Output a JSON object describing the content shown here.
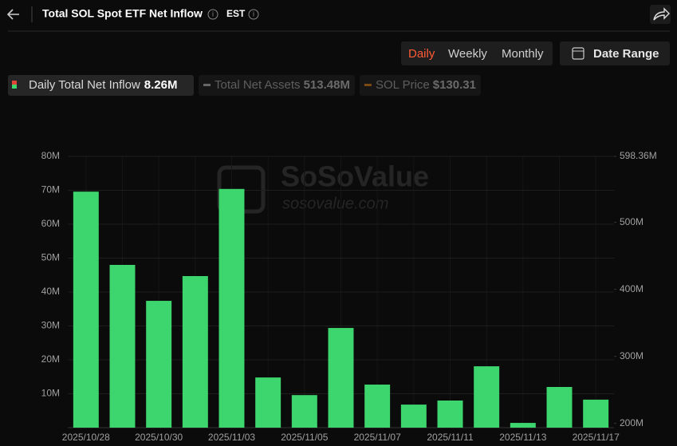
{
  "header": {
    "title": "Total SOL Spot ETF Net Inflow",
    "timezone": "EST"
  },
  "tabs": [
    "Daily",
    "Weekly",
    "Monthly"
  ],
  "active_tab": 0,
  "date_range": "Date Range",
  "watermark": {
    "brand": "SoSoValue",
    "site": "sosovalue.com"
  },
  "chart_data": {
    "type": "bar",
    "categories": [
      "2025/10/28",
      null,
      "2025/10/30",
      null,
      "2025/11/03",
      null,
      "2025/11/05",
      null,
      "2025/11/07",
      null,
      "2025/11/11",
      null,
      "2025/11/13",
      null,
      "2025/11/17"
    ],
    "series": [
      {
        "name": "Daily Total Net Inflow",
        "color": "#3dd56d",
        "latest_label": "8.26M",
        "values": [
          69.6,
          48.0,
          37.4,
          44.7,
          70.4,
          14.8,
          9.6,
          29.4,
          12.7,
          6.8,
          8.0,
          18.1,
          1.4,
          12.0,
          8.26
        ]
      }
    ],
    "other_metrics": [
      {
        "name": "Total Net Assets",
        "value_label": "513.48M",
        "color": "#666666"
      },
      {
        "name": "SOL Price",
        "value_label": "$130.31",
        "color": "#7a4a12"
      }
    ],
    "ylim": [
      0,
      80
    ],
    "yticks": [
      {
        "value": 10,
        "label": "10M"
      },
      {
        "value": 20,
        "label": "20M"
      },
      {
        "value": 30,
        "label": "30M"
      },
      {
        "value": 40,
        "label": "40M"
      },
      {
        "value": 50,
        "label": "50M"
      },
      {
        "value": 60,
        "label": "60M"
      },
      {
        "value": 70,
        "label": "70M"
      },
      {
        "value": 80,
        "label": "80M"
      }
    ],
    "y2lim": [
      193.6,
      598.36
    ],
    "y2ticks": [
      {
        "value": 200,
        "label": "200M"
      },
      {
        "value": 300,
        "label": "300M"
      },
      {
        "value": 400,
        "label": "400M"
      },
      {
        "value": 500,
        "label": "500M"
      },
      {
        "value": 598.36,
        "label": "598.36M"
      }
    ],
    "grid": true
  }
}
